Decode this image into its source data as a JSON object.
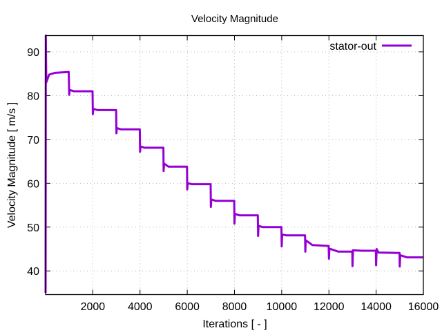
{
  "chart_data": {
    "type": "line",
    "title": "Velocity Magnitude",
    "xlabel": "Iterations [ - ]",
    "ylabel": "Velocity Magnitude [ m/s ]",
    "xlim": [
      0,
      16000
    ],
    "ylim": [
      34.6,
      93.7
    ],
    "xticks": [
      2000,
      4000,
      6000,
      8000,
      10000,
      12000,
      14000,
      16000
    ],
    "yticks": [
      40,
      50,
      60,
      70,
      80,
      90
    ],
    "grid": true,
    "legend_position": "top-right",
    "series": [
      {
        "name": "stator-out",
        "color": "#9400d3",
        "points": [
          [
            0,
            35
          ],
          [
            10,
            94
          ],
          [
            30,
            83
          ],
          [
            150,
            84.8
          ],
          [
            400,
            85.2
          ],
          [
            980,
            85.4
          ],
          [
            1000,
            80.2
          ],
          [
            1020,
            81.3
          ],
          [
            1200,
            81.0
          ],
          [
            1990,
            81.0
          ],
          [
            2000,
            75.8
          ],
          [
            2020,
            77.0
          ],
          [
            2200,
            76.7
          ],
          [
            2990,
            76.7
          ],
          [
            3000,
            71.4
          ],
          [
            3020,
            72.6
          ],
          [
            3200,
            72.3
          ],
          [
            3990,
            72.3
          ],
          [
            4000,
            67.2
          ],
          [
            4020,
            68.4
          ],
          [
            4200,
            68.1
          ],
          [
            4990,
            68.1
          ],
          [
            5000,
            62.8
          ],
          [
            5020,
            64.5
          ],
          [
            5200,
            63.8
          ],
          [
            5990,
            63.8
          ],
          [
            6000,
            58.6
          ],
          [
            6020,
            60.0
          ],
          [
            6200,
            59.8
          ],
          [
            6990,
            59.8
          ],
          [
            7000,
            54.6
          ],
          [
            7020,
            56.3
          ],
          [
            7200,
            56.0
          ],
          [
            7990,
            56.0
          ],
          [
            8000,
            50.8
          ],
          [
            8020,
            53.0
          ],
          [
            8200,
            52.7
          ],
          [
            8990,
            52.7
          ],
          [
            9000,
            48.0
          ],
          [
            9020,
            50.3
          ],
          [
            9200,
            50.0
          ],
          [
            9990,
            50.0
          ],
          [
            10000,
            45.6
          ],
          [
            10020,
            48.3
          ],
          [
            10200,
            48.1
          ],
          [
            10990,
            48.1
          ],
          [
            11000,
            44.4
          ],
          [
            11020,
            47.0
          ],
          [
            11300,
            45.9
          ],
          [
            11990,
            45.7
          ],
          [
            12000,
            42.8
          ],
          [
            12020,
            45.1
          ],
          [
            12400,
            44.4
          ],
          [
            12990,
            44.4
          ],
          [
            13000,
            41.1
          ],
          [
            13020,
            44.7
          ],
          [
            13400,
            44.6
          ],
          [
            13990,
            44.6
          ],
          [
            14000,
            41.3
          ],
          [
            14020,
            45.0
          ],
          [
            14100,
            44.2
          ],
          [
            14990,
            44.1
          ],
          [
            15000,
            41.0
          ],
          [
            15020,
            43.6
          ],
          [
            15300,
            43.1
          ],
          [
            16000,
            43.1
          ]
        ]
      }
    ]
  }
}
